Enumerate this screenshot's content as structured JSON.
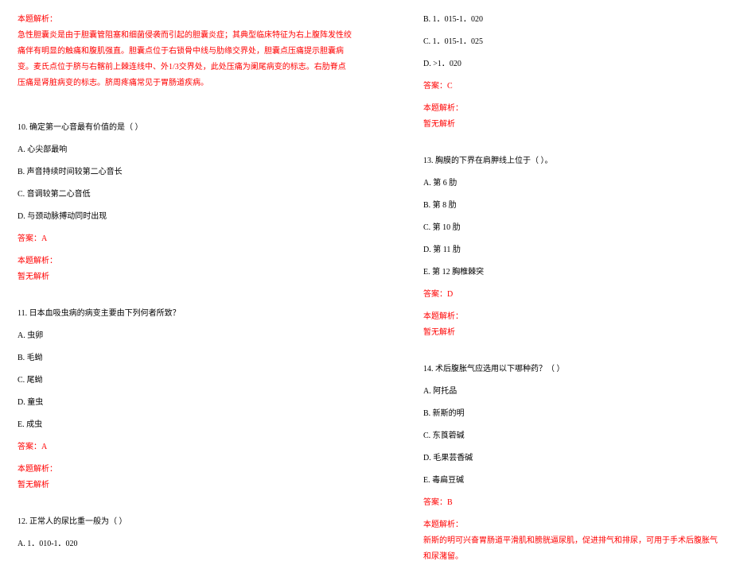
{
  "left": {
    "analysis_label": "本题解析：",
    "analysis_text": "急性胆囊炎是由于胆囊管阻塞和细菌侵袭而引起的胆囊炎症；其典型临床特征为右上腹阵发性绞痛伴有明显的触痛和腹肌强直。胆囊点位于右锁骨中线与肋缘交界处，胆囊点压痛提示胆囊病变。麦氏点位于脐与右髂前上棘连线中、外1/3交界处，此处压痛为阑尾病变的标志。右肋脊点压痛是肾脏病变的标志。脐周疼痛常见于胃肠道疾病。",
    "q10": {
      "stem": "10. 确定第一心音最有价值的是（  ）",
      "a": "A. 心尖部最响",
      "b": "B. 声音持续时间较第二心音长",
      "c": "C. 音调较第二心音低",
      "d": "D. 与颈动脉搏动同时出现",
      "ans": "答案：A",
      "ana_label": "本题解析：",
      "ana_text": "暂无解析"
    },
    "q11": {
      "stem": "11. 日本血吸虫病的病变主要由下列何者所致？",
      "a": "A. 虫卵",
      "b": "B. 毛蚴",
      "c": "C. 尾蚴",
      "d": "D. 童虫",
      "e": "E. 成虫",
      "ans": "答案：A",
      "ana_label": "本题解析：",
      "ana_text": "暂无解析"
    },
    "q12": {
      "stem": "12. 正常人的尿比重一般为（  ）",
      "a": "A. 1．010-1．020"
    }
  },
  "right": {
    "q12_opts": {
      "b": "B. 1．015-1．020",
      "c": "C. 1．015-1．025",
      "d": "D. >1．020",
      "ans": "答案：C",
      "ana_label": "本题解析：",
      "ana_text": "暂无解析"
    },
    "q13": {
      "stem": "13. 胸膜的下界在肩胛线上位于（  ）。",
      "a": "A. 第 6 肋",
      "b": "B. 第 8 肋",
      "c": "C. 第 10 肋",
      "d": "D. 第 11 肋",
      "e": "E. 第 12 胸椎棘突",
      "ans": "答案：D",
      "ana_label": "本题解析：",
      "ana_text": "暂无解析"
    },
    "q14": {
      "stem": "14. 术后腹胀气应选用以下哪种药？（  ）",
      "a": "A. 阿托品",
      "b": "B. 新斯的明",
      "c": "C. 东莨菪碱",
      "d": "D. 毛果芸香碱",
      "e": "E. 毒扁豆碱",
      "ans": "答案：B",
      "ana_label": "本题解析：",
      "ana_text": "新斯的明可兴奋胃肠道平滑肌和膀胱逼尿肌，促进排气和排尿，可用于手术后腹胀气和尿潴留。"
    }
  }
}
